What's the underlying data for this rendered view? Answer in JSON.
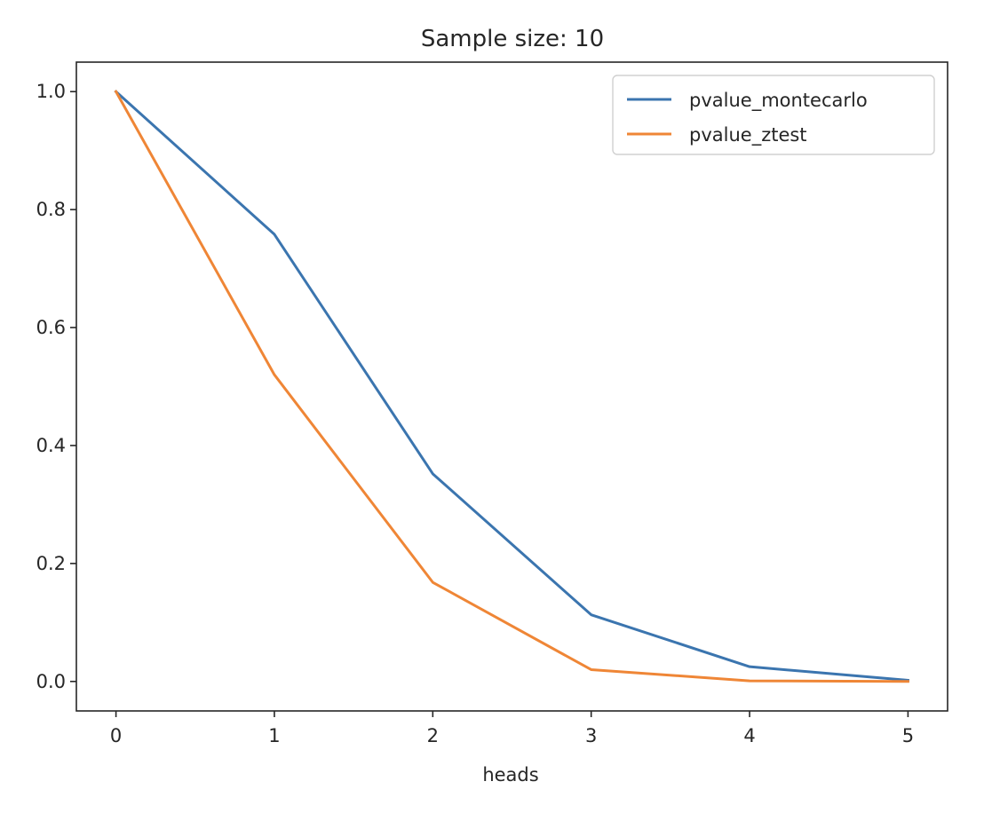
{
  "chart_data": {
    "type": "line",
    "title": "Sample size: 10",
    "xlabel": "heads",
    "ylabel": "",
    "x": [
      0,
      1,
      2,
      3,
      4,
      5
    ],
    "xticks": [
      "0",
      "1",
      "2",
      "3",
      "4",
      "5"
    ],
    "yticks": [
      "0.0",
      "0.2",
      "0.4",
      "0.6",
      "0.8",
      "1.0"
    ],
    "xlim": [
      -0.25,
      5.25
    ],
    "ylim": [
      -0.05,
      1.05
    ],
    "grid": false,
    "legend_position": "top-right",
    "series": [
      {
        "name": "pvalue_montecarlo",
        "color": "#3b75af",
        "values": [
          1.0,
          0.758,
          0.352,
          0.113,
          0.025,
          0.002
        ]
      },
      {
        "name": "pvalue_ztest",
        "color": "#ef8636",
        "values": [
          1.0,
          0.52,
          0.168,
          0.02,
          0.001,
          0.0
        ]
      }
    ]
  }
}
